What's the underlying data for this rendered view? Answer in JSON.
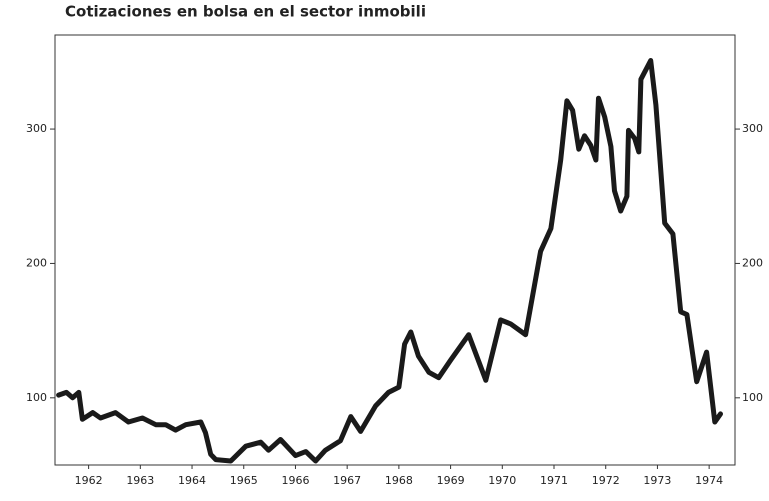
{
  "chart_data": {
    "type": "line",
    "title": "Cotizaciones en bolsa en el sector inmobili",
    "x": [
      1961.92,
      1962.07,
      1962.19,
      1962.31,
      1962.38,
      1962.58,
      1962.73,
      1963.02,
      1963.27,
      1963.54,
      1963.8,
      1963.99,
      1964.18,
      1964.38,
      1964.67,
      1964.76,
      1964.86,
      1964.96,
      1965.25,
      1965.54,
      1965.83,
      1965.98,
      1966.21,
      1966.5,
      1966.7,
      1966.89,
      1967.08,
      1967.37,
      1967.57,
      1967.76,
      1968.05,
      1968.3,
      1968.5,
      1968.61,
      1968.73,
      1968.88,
      1969.08,
      1969.27,
      1969.5,
      1969.85,
      1970.18,
      1970.47,
      1970.66,
      1970.95,
      1971.24,
      1971.44,
      1971.63,
      1971.75,
      1971.86,
      1971.98,
      1972.09,
      1972.21,
      1972.31,
      1972.36,
      1972.48,
      1972.6,
      1972.67,
      1972.79,
      1972.91,
      1972.94,
      1973.06,
      1973.14,
      1973.18,
      1973.37,
      1973.47,
      1973.64,
      1973.8,
      1973.95,
      1974.07,
      1974.26,
      1974.45,
      1974.61,
      1974.72
    ],
    "series": [
      {
        "color": "#1a1a1a",
        "values": [
          102,
          104,
          100,
          104,
          84,
          89,
          85,
          89,
          82,
          85,
          80,
          80,
          76,
          80,
          82,
          74,
          58,
          54,
          53,
          64,
          67,
          61,
          69,
          57,
          60,
          53,
          61,
          68,
          86,
          75,
          94,
          104,
          108,
          140,
          149,
          131,
          119,
          115,
          128,
          147,
          113,
          158,
          155,
          147,
          209,
          226,
          277,
          321,
          314,
          285,
          295,
          288,
          277,
          323,
          309,
          287,
          254,
          239,
          250,
          299,
          293,
          283,
          337,
          351,
          318,
          230,
          222,
          164,
          162,
          112,
          134,
          82,
          88
        ]
      }
    ],
    "xlim": [
      1961.85,
      1975.0
    ],
    "xticks": [
      {
        "value": 1962.5,
        "label": "1962"
      },
      {
        "value": 1963.5,
        "label": "1963"
      },
      {
        "value": 1964.5,
        "label": "1964"
      },
      {
        "value": 1965.5,
        "label": "1965"
      },
      {
        "value": 1966.5,
        "label": "1966"
      },
      {
        "value": 1967.5,
        "label": "1967"
      },
      {
        "value": 1968.5,
        "label": "1968"
      },
      {
        "value": 1969.5,
        "label": "1969"
      },
      {
        "value": 1970.5,
        "label": "1970"
      },
      {
        "value": 1971.5,
        "label": "1971"
      },
      {
        "value": 1972.5,
        "label": "1972"
      },
      {
        "value": 1973.5,
        "label": "1973"
      },
      {
        "value": 1974.5,
        "label": "1974"
      }
    ],
    "ylim": [
      50,
      370
    ],
    "yticks": [
      100,
      200,
      300
    ],
    "y2lim": [
      50,
      370
    ],
    "y2ticks": [
      100,
      200,
      300
    ]
  }
}
